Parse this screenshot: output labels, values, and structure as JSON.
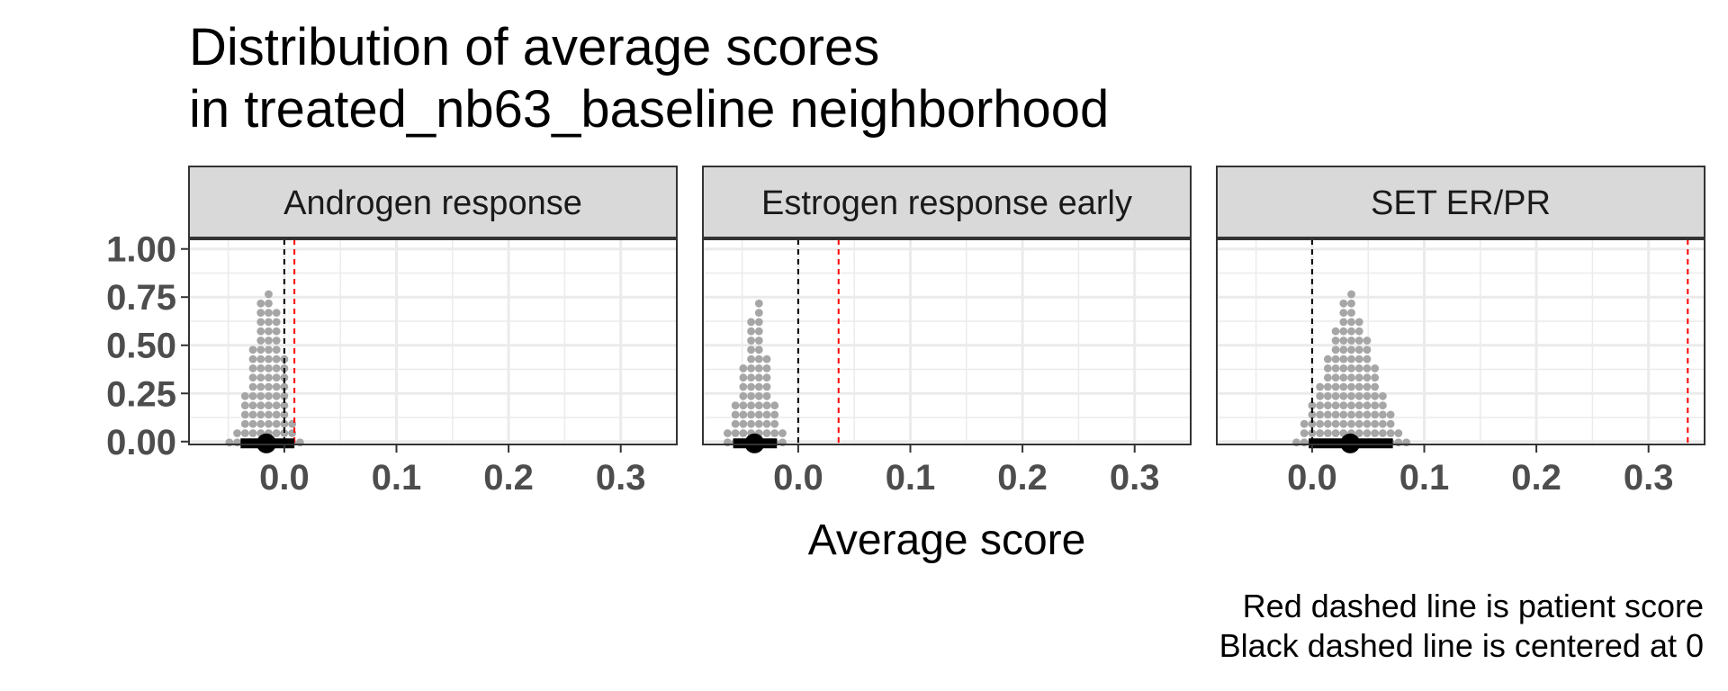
{
  "chart_data": {
    "type": "dotplot",
    "title_lines": [
      "Distribution of average scores",
      "in treated_nb63_baseline neighborhood"
    ],
    "xlabel": "Average score",
    "ylabel": "",
    "caption_lines": [
      "Red dashed line is patient score",
      "Black dashed line is centered at 0"
    ],
    "xlim": [
      -0.085,
      0.35
    ],
    "ylim": [
      -0.015,
      1.05
    ],
    "x_ticks": [
      0.0,
      0.1,
      0.2,
      0.3
    ],
    "x_tick_labels": [
      "0.0",
      "0.1",
      "0.2",
      "0.3"
    ],
    "y_ticks": [
      0.0,
      0.25,
      0.5,
      0.75,
      1.0
    ],
    "y_tick_labels": [
      "0.00",
      "0.25",
      "0.50",
      "0.75",
      "1.00"
    ],
    "grid": true,
    "zero_line_color": "#000000",
    "patient_line_color": "#ff0000",
    "dot_color": "#a6a6a6",
    "summary_color": "#000000",
    "panels": [
      {
        "name": "Androgen response",
        "patient_score": 0.009,
        "median": -0.016,
        "interval": [
          -0.039,
          0.009
        ],
        "dot_columns": [
          {
            "x": -0.049,
            "count": 1
          },
          {
            "x": -0.042,
            "count": 2
          },
          {
            "x": -0.035,
            "count": 6
          },
          {
            "x": -0.028,
            "count": 11
          },
          {
            "x": -0.021,
            "count": 16
          },
          {
            "x": -0.014,
            "count": 17
          },
          {
            "x": -0.007,
            "count": 15
          },
          {
            "x": 0.0,
            "count": 10
          },
          {
            "x": 0.007,
            "count": 3
          },
          {
            "x": 0.014,
            "count": 1
          }
        ]
      },
      {
        "name": "Estrogen response early",
        "patient_score": 0.036,
        "median": -0.039,
        "interval": [
          -0.058,
          -0.019
        ],
        "dot_columns": [
          {
            "x": -0.063,
            "count": 2
          },
          {
            "x": -0.056,
            "count": 5
          },
          {
            "x": -0.049,
            "count": 9
          },
          {
            "x": -0.042,
            "count": 14
          },
          {
            "x": -0.035,
            "count": 16
          },
          {
            "x": -0.028,
            "count": 10
          },
          {
            "x": -0.021,
            "count": 5
          },
          {
            "x": -0.014,
            "count": 2
          }
        ]
      },
      {
        "name": "SET ER/PR",
        "patient_score": 0.335,
        "median": 0.034,
        "interval": [
          -0.003,
          0.072
        ],
        "dot_columns": [
          {
            "x": -0.014,
            "count": 1
          },
          {
            "x": -0.007,
            "count": 3
          },
          {
            "x": 0.0,
            "count": 5
          },
          {
            "x": 0.007,
            "count": 7
          },
          {
            "x": 0.014,
            "count": 10
          },
          {
            "x": 0.021,
            "count": 13
          },
          {
            "x": 0.028,
            "count": 16
          },
          {
            "x": 0.035,
            "count": 17
          },
          {
            "x": 0.042,
            "count": 14
          },
          {
            "x": 0.049,
            "count": 12
          },
          {
            "x": 0.056,
            "count": 9
          },
          {
            "x": 0.063,
            "count": 6
          },
          {
            "x": 0.07,
            "count": 4
          },
          {
            "x": 0.077,
            "count": 2
          },
          {
            "x": 0.084,
            "count": 1
          }
        ]
      }
    ]
  }
}
